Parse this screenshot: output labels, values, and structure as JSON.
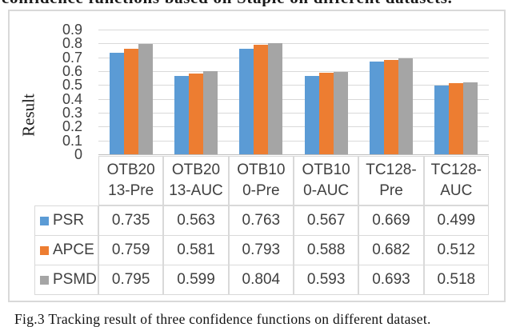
{
  "page": {
    "top_text_partial": "confidence functions based on Staple on different datasets.",
    "caption": "Fig.3 Tracking result of three confidence functions on different dataset."
  },
  "chart_data": {
    "type": "bar",
    "title": "",
    "xlabel": "",
    "ylabel": "Result",
    "ylim": [
      0,
      0.9
    ],
    "yticks": [
      0,
      0.1,
      0.2,
      0.3,
      0.4,
      0.5,
      0.6,
      0.7,
      0.8,
      0.9
    ],
    "grid": true,
    "legend_position": "left-of-data-table",
    "categories": [
      "OTB2013-Pre",
      "OTB2013-AUC",
      "OTB100-Pre",
      "OTB100-AUC",
      "TC128-Pre",
      "TC128-AUC"
    ],
    "categories_display": [
      "OTB20\n13-Pre",
      "OTB20\n13-AUC",
      "OTB10\n0-Pre",
      "OTB10\n0-AUC",
      "TC128-\nPre",
      "TC128-\nAUC"
    ],
    "series": [
      {
        "name": "PSR",
        "color": "#5B9BD5",
        "values": [
          0.735,
          0.563,
          0.763,
          0.567,
          0.669,
          0.499
        ]
      },
      {
        "name": "APCE",
        "color": "#ED7D31",
        "values": [
          0.759,
          0.581,
          0.793,
          0.588,
          0.682,
          0.512
        ]
      },
      {
        "name": "PSMD",
        "color": "#A5A5A5",
        "values": [
          0.795,
          0.599,
          0.804,
          0.593,
          0.693,
          0.518
        ]
      }
    ],
    "value_format_decimals": 3
  },
  "colors": {
    "gridline": "#D9D9D9",
    "cell_border": "#D9D9D9",
    "frame_border": "#D9D9D9",
    "chart_text": "#404040",
    "caption_text": "#111111"
  }
}
